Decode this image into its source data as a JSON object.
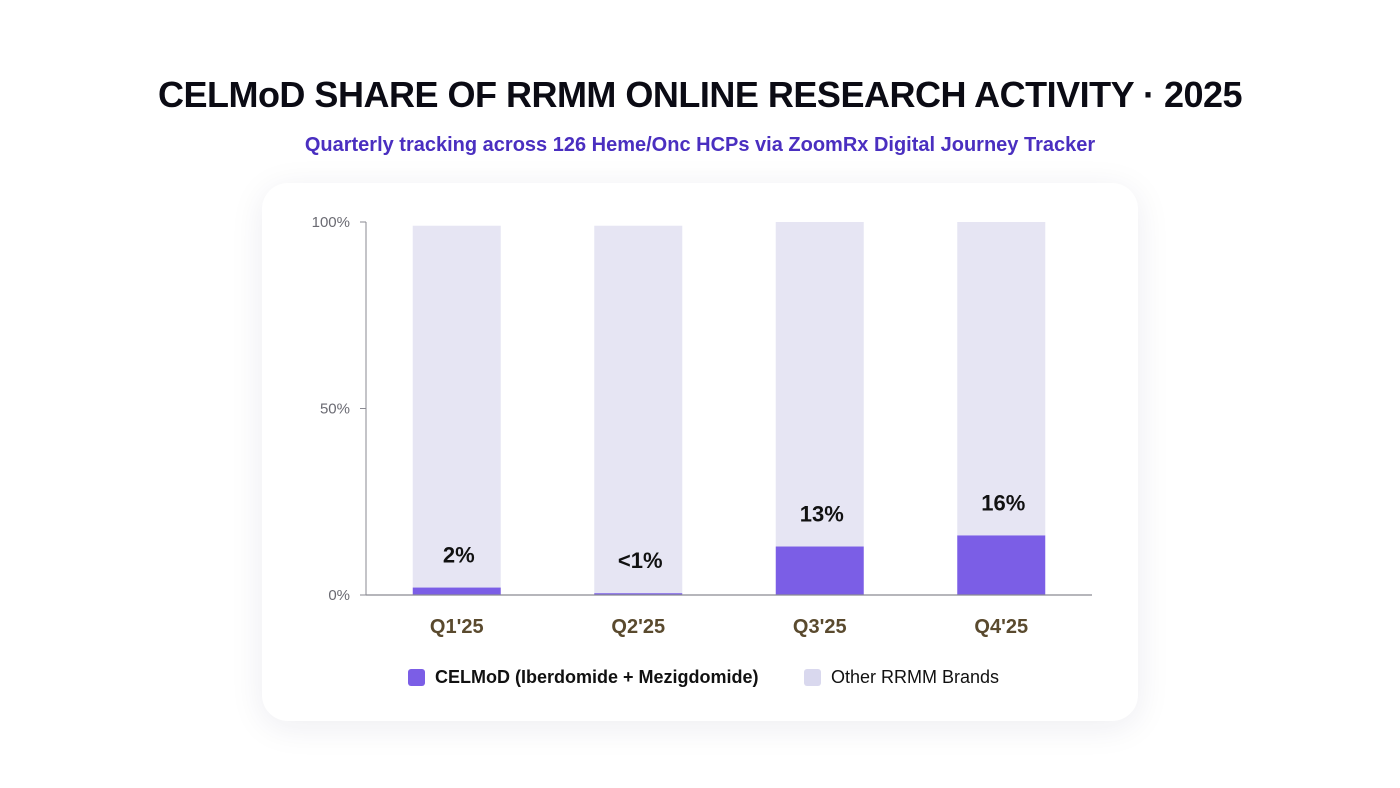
{
  "title": "CELMoD SHARE OF RRMM ONLINE RESEARCH ACTIVITY ·  2025",
  "subtitle": "Quarterly tracking across 126 Heme/Onc HCPs via ZoomRx Digital Journey Tracker",
  "colors": {
    "celmod": "#7b5ee6",
    "other": "#e6e5f3",
    "title": "#0b0b14",
    "subtitle": "#4a2fc0"
  },
  "chart_data": {
    "type": "bar",
    "stacked": true,
    "categories": [
      "Q1'25",
      "Q2'25",
      "Q3'25",
      "Q4'25"
    ],
    "series": [
      {
        "name": "CELMoD (Iberdomide + Mezigdomide)",
        "values": [
          2,
          0.5,
          13,
          16
        ],
        "color": "#7b5ee6"
      },
      {
        "name": "Other RRMM Brands",
        "values": [
          97,
          98.5,
          87,
          84
        ],
        "color": "#e6e5f3"
      }
    ],
    "data_labels": [
      "2%",
      "<1%",
      "13%",
      "16%"
    ],
    "ylim": [
      0,
      100
    ],
    "yticks": [
      {
        "value": 0,
        "label": "0%"
      },
      {
        "value": 50,
        "label": "50%"
      },
      {
        "value": 100,
        "label": "100%"
      }
    ],
    "xlabel": "",
    "ylabel": "",
    "grid": false,
    "legend_position": "bottom"
  },
  "legend": [
    {
      "label": "CELMoD (Iberdomide + Mezigdomide)",
      "color": "#7b5ee6",
      "bold": true
    },
    {
      "label": "Other RRMM Brands",
      "color": "#d9d8ee",
      "bold": false
    }
  ]
}
